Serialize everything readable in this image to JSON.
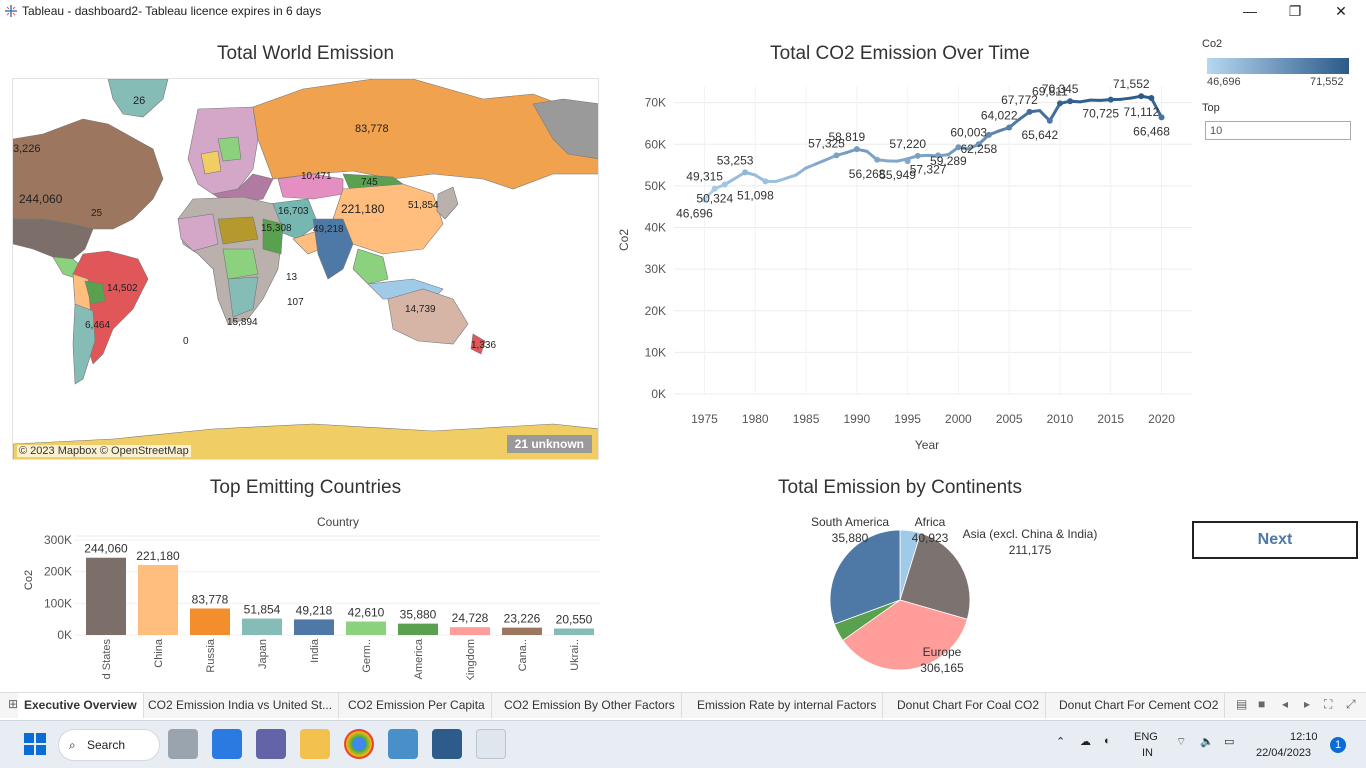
{
  "window": {
    "title": "Tableau - dashboard2- Tableau licence expires in 6 days",
    "minimize": "—",
    "restore": "❐",
    "close": "✕"
  },
  "sheets": {
    "map_title": "Total World Emission",
    "line_title": "Total CO2 Emission Over Time",
    "bar_title": "Top Emitting Countries",
    "pie_title": "Total Emission by Continents"
  },
  "map": {
    "attribution": "© 2023 Mapbox © OpenStreetMap",
    "unknown": "21 unknown",
    "labels": [
      {
        "t": "26"
      },
      {
        "t": "83,778"
      },
      {
        "t": "3,226"
      },
      {
        "t": "244,060"
      },
      {
        "t": "221,180"
      },
      {
        "t": "49,218"
      },
      {
        "t": "14,502"
      },
      {
        "t": "14,739"
      },
      {
        "t": "51,854"
      },
      {
        "t": "10,471"
      },
      {
        "t": "745"
      },
      {
        "t": "15,308"
      },
      {
        "t": "16,703"
      },
      {
        "t": "6,464"
      },
      {
        "t": "15,894"
      },
      {
        "t": "1,336"
      },
      {
        "t": "25"
      },
      {
        "t": "0"
      },
      {
        "t": "107"
      },
      {
        "t": "13"
      }
    ]
  },
  "legend": {
    "title": "Co2",
    "min": "46,696",
    "max": "71,552",
    "top_label": "Top",
    "top_value": "10"
  },
  "next_button": "Next",
  "chart_data": [
    {
      "type": "line",
      "title": "Total CO2 Emission Over Time",
      "xlabel": "Year",
      "ylabel": "Co2",
      "xlim": [
        1972,
        2023
      ],
      "ylim": [
        0,
        74000
      ],
      "x_ticks": [
        1975,
        1980,
        1985,
        1990,
        1995,
        2000,
        2005,
        2010,
        2015,
        2020
      ],
      "y_ticks": [
        0,
        10000,
        20000,
        30000,
        40000,
        50000,
        60000,
        70000
      ],
      "y_tick_labels": [
        "0K",
        "10K",
        "20K",
        "30K",
        "40K",
        "50K",
        "60K",
        "70K"
      ],
      "grid": true,
      "series": [
        {
          "x": [
            1975,
            1976,
            1977,
            1979,
            1980,
            1981,
            1982,
            1983,
            1984,
            1985,
            1986,
            1988,
            1989,
            1990,
            1991,
            1992,
            1993,
            1994,
            1995,
            1996,
            1997,
            1998,
            1999,
            2000,
            2001,
            2002,
            2003,
            2004,
            2005,
            2006,
            2007,
            2008,
            2009,
            2010,
            2011,
            2012,
            2013,
            2014,
            2015,
            2016,
            2017,
            2018,
            2019,
            2020
          ],
          "y": [
            46696,
            49315,
            50324,
            53253,
            52600,
            51098,
            51050,
            51800,
            52600,
            54300,
            55300,
            57325,
            58000,
            58819,
            58300,
            56268,
            56000,
            55949,
            56500,
            57220,
            57327,
            57200,
            57500,
            59289,
            58900,
            60003,
            62258,
            63200,
            64022,
            66000,
            67772,
            68100,
            65642,
            69811,
            70345,
            70200,
            70600,
            70550,
            70725,
            70800,
            71100,
            71552,
            71112,
            66468
          ]
        }
      ],
      "data_labels": [
        {
          "x": 1975,
          "y": 46696,
          "t": "46,696"
        },
        {
          "x": 1976,
          "y": 49315,
          "t": "49,315"
        },
        {
          "x": 1977,
          "y": 50324,
          "t": "50,324"
        },
        {
          "x": 1979,
          "y": 53253,
          "t": "53,253"
        },
        {
          "x": 1981,
          "y": 51098,
          "t": "51,098"
        },
        {
          "x": 1988,
          "y": 57325,
          "t": "57,325"
        },
        {
          "x": 1990,
          "y": 58819,
          "t": "58,819"
        },
        {
          "x": 1992,
          "y": 56268,
          "t": "56,268"
        },
        {
          "x": 1995,
          "y": 55949,
          "t": "55,949"
        },
        {
          "x": 1996,
          "y": 57220,
          "t": "57,220"
        },
        {
          "x": 1998,
          "y": 57327,
          "t": "57,327"
        },
        {
          "x": 2000,
          "y": 59289,
          "t": "59,289"
        },
        {
          "x": 2002,
          "y": 60003,
          "t": "60,003"
        },
        {
          "x": 2003,
          "y": 62258,
          "t": "62,258"
        },
        {
          "x": 2005,
          "y": 64022,
          "t": "64,022"
        },
        {
          "x": 2007,
          "y": 67772,
          "t": "67,772"
        },
        {
          "x": 2009,
          "y": 65642,
          "t": "65,642"
        },
        {
          "x": 2010,
          "y": 69811,
          "t": "69,811"
        },
        {
          "x": 2011,
          "y": 70345,
          "t": "70,345"
        },
        {
          "x": 2015,
          "y": 70725,
          "t": "70,725"
        },
        {
          "x": 2018,
          "y": 71552,
          "t": "71,552"
        },
        {
          "x": 2019,
          "y": 71112,
          "t": "71,112"
        },
        {
          "x": 2020,
          "y": 66468,
          "t": "66,468"
        }
      ]
    },
    {
      "type": "bar",
      "title": "Top Emitting Countries",
      "header": "Country",
      "ylabel": "Co2",
      "ylim": [
        0,
        300000
      ],
      "y_ticks": [
        0,
        100000,
        200000,
        300000
      ],
      "y_tick_labels": [
        "0K",
        "100K",
        "200K",
        "300K"
      ],
      "categories": [
        "United States",
        "China",
        "Russia",
        "Japan",
        "India",
        "Germ..",
        "South America",
        "United Kingdom",
        "Cana..",
        "Ukrai.."
      ],
      "values": [
        244060,
        221180,
        83778,
        51854,
        49218,
        42610,
        35880,
        24728,
        23226,
        20550
      ],
      "value_labels": [
        "244,060",
        "221,180",
        "83,778",
        "51,854",
        "49,218",
        "42,610",
        "35,880",
        "24,728",
        "23,226",
        "20,550"
      ],
      "colors": [
        "#7c6f6a",
        "#ffbe7d",
        "#f28e2b",
        "#86bcb6",
        "#4e79a7",
        "#8cd17d",
        "#59a14f",
        "#ff9d9a",
        "#9d7660",
        "#86bcb6"
      ]
    },
    {
      "type": "pie",
      "title": "Total Emission by Continents",
      "slices": [
        {
          "label": "Africa",
          "value": 40923,
          "value_label": "40,923",
          "color": "#a0cbe8"
        },
        {
          "label": "Asia (excl. China & India)",
          "value": 211175,
          "value_label": "211,175",
          "color": "#7c7270"
        },
        {
          "label": "Europe",
          "value": 306165,
          "value_label": "306,165",
          "color": "#ff9d9a"
        },
        {
          "label": "South America",
          "value": 35880,
          "value_label": "35,880",
          "color": "#59a14f"
        },
        {
          "label": "",
          "value": 262000,
          "value_label": "",
          "color": "#4e79a7"
        }
      ]
    }
  ],
  "tabs": [
    {
      "label": "Executive Overview",
      "active": true
    },
    {
      "label": "CO2 Emission India vs United St...",
      "active": false
    },
    {
      "label": "CO2 Emission Per Capita",
      "active": false
    },
    {
      "label": "CO2 Emission By Other Factors",
      "active": false
    },
    {
      "label": "Emission Rate by internal Factors",
      "active": false
    },
    {
      "label": "Donut Chart For Coal CO2",
      "active": false
    },
    {
      "label": "Donut Chart For Cement CO2",
      "active": false
    }
  ],
  "taskbar": {
    "search": "Search",
    "lang1": "ENG",
    "lang2": "IN",
    "time": "12:10",
    "date": "22/04/2023",
    "notif": "1"
  }
}
